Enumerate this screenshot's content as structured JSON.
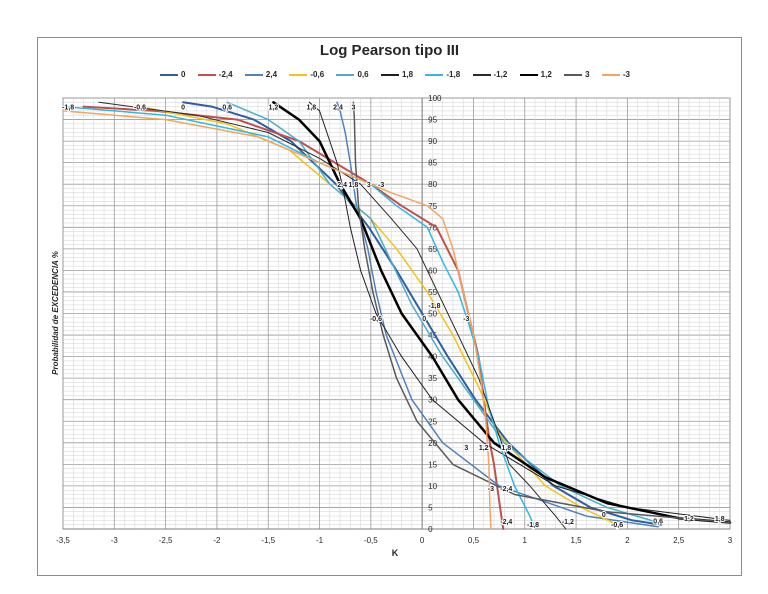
{
  "chart_data": {
    "type": "line",
    "title": "Log Pearson tipo III",
    "xlabel": "K",
    "ylabel": "Probabilidad de  EXCEDENCIA %",
    "xlim": [
      -3.5,
      3
    ],
    "ylim": [
      0,
      100
    ],
    "x_ticks": [
      "-3,5",
      "-3",
      "-2,5",
      "-2",
      "-1,5",
      "-1",
      "-0,5",
      "0",
      "0,5",
      "1",
      "1,5",
      "2",
      "2,5",
      "3"
    ],
    "y_ticks": [
      "0",
      "5",
      "10",
      "15",
      "20",
      "25",
      "30",
      "35",
      "40",
      "45",
      "50",
      "55",
      "60",
      "65",
      "70",
      "75",
      "80",
      "85",
      "90",
      "95",
      "100"
    ],
    "grid": "on",
    "legend_position": "top",
    "series": [
      {
        "name": "0",
        "color": "#2e5fa4",
        "width": 2,
        "points": [
          [
            -2.33,
            99
          ],
          [
            -2.05,
            98
          ],
          [
            -1.64,
            95
          ],
          [
            -1.28,
            90
          ],
          [
            -0.84,
            80
          ],
          [
            -0.52,
            70
          ],
          [
            -0.25,
            60
          ],
          [
            0,
            50
          ],
          [
            0.25,
            40
          ],
          [
            0.52,
            30
          ],
          [
            0.84,
            20
          ],
          [
            1.28,
            10
          ],
          [
            1.64,
            5
          ],
          [
            2.05,
            2
          ],
          [
            2.33,
            1
          ]
        ]
      },
      {
        "name": "-2,4",
        "color": "#c0504d",
        "width": 2,
        "points": [
          [
            -3.3,
            98
          ],
          [
            -2.6,
            97
          ],
          [
            -1.8,
            95
          ],
          [
            -1.2,
            90
          ],
          [
            -0.5,
            80
          ],
          [
            -0.2,
            75
          ],
          [
            0.14,
            70
          ],
          [
            0.35,
            60
          ],
          [
            0.45,
            50
          ],
          [
            0.55,
            40
          ],
          [
            0.6,
            30
          ],
          [
            0.66,
            20
          ],
          [
            0.7,
            15
          ],
          [
            0.76,
            5
          ],
          [
            0.79,
            0
          ]
        ]
      },
      {
        "name": "2,4",
        "color": "#4f81bd",
        "width": 1.5,
        "points": [
          [
            -0.83,
            99
          ],
          [
            -0.8,
            97
          ],
          [
            -0.75,
            92
          ],
          [
            -0.7,
            85
          ],
          [
            -0.64,
            75
          ],
          [
            -0.53,
            65
          ],
          [
            -0.45,
            55
          ],
          [
            -0.35,
            45
          ],
          [
            -0.1,
            30
          ],
          [
            0.2,
            20
          ],
          [
            0.75,
            10
          ],
          [
            1.6,
            3
          ],
          [
            2.3,
            0.5
          ]
        ]
      },
      {
        "name": "-0,6",
        "color": "#f2c314",
        "width": 1.5,
        "points": [
          [
            -2.75,
            98
          ],
          [
            -1.9,
            94
          ],
          [
            -1.3,
            88
          ],
          [
            -0.9,
            80
          ],
          [
            -0.5,
            72
          ],
          [
            -0.25,
            65
          ],
          [
            0.05,
            55
          ],
          [
            0.3,
            45
          ],
          [
            0.55,
            33
          ],
          [
            0.75,
            22
          ],
          [
            1.2,
            10
          ],
          [
            1.55,
            5
          ],
          [
            1.9,
            1
          ]
        ]
      },
      {
        "name": "0,6",
        "color": "#4bacc6",
        "width": 1.5,
        "points": [
          [
            -1.9,
            99
          ],
          [
            -1.5,
            95
          ],
          [
            -1.2,
            90
          ],
          [
            -0.9,
            80
          ],
          [
            -0.5,
            72
          ],
          [
            -0.3,
            62
          ],
          [
            -0.1,
            52
          ],
          [
            0.2,
            40
          ],
          [
            0.5,
            30
          ],
          [
            0.8,
            20
          ],
          [
            1.35,
            10
          ],
          [
            1.8,
            5
          ],
          [
            2.3,
            1.5
          ]
        ]
      },
      {
        "name": "1,8",
        "color": "#1f1f1f",
        "width": 1,
        "points": [
          [
            -1.1,
            99
          ],
          [
            -1.0,
            97
          ],
          [
            -0.9,
            90
          ],
          [
            -0.83,
            85
          ],
          [
            -0.78,
            80
          ],
          [
            -0.7,
            70
          ],
          [
            -0.6,
            60
          ],
          [
            -0.45,
            50
          ],
          [
            -0.2,
            40
          ],
          [
            0.1,
            30
          ],
          [
            0.6,
            20
          ],
          [
            1.3,
            10
          ],
          [
            2.0,
            5
          ],
          [
            3.0,
            2
          ]
        ]
      },
      {
        "name": "-1,8",
        "color": "#31b7e5",
        "width": 1.5,
        "points": [
          [
            -3.5,
            98
          ],
          [
            -2.5,
            96
          ],
          [
            -1.5,
            91
          ],
          [
            -1.0,
            85
          ],
          [
            -0.5,
            80
          ],
          [
            -0.25,
            75
          ],
          [
            0.05,
            70
          ],
          [
            0.2,
            62
          ],
          [
            0.35,
            55
          ],
          [
            0.45,
            48
          ],
          [
            0.55,
            40
          ],
          [
            0.65,
            28
          ],
          [
            0.75,
            20
          ],
          [
            0.9,
            10
          ],
          [
            1.05,
            3
          ],
          [
            1.1,
            0
          ]
        ]
      },
      {
        "name": "-1,2",
        "color": "#2b2b2b",
        "width": 1,
        "points": [
          [
            -3.15,
            99
          ],
          [
            -2.2,
            96
          ],
          [
            -1.5,
            92
          ],
          [
            -1.0,
            86
          ],
          [
            -0.6,
            80
          ],
          [
            -0.3,
            72
          ],
          [
            -0.05,
            65
          ],
          [
            0.15,
            55
          ],
          [
            0.35,
            45
          ],
          [
            0.55,
            35
          ],
          [
            0.7,
            25
          ],
          [
            0.85,
            15
          ],
          [
            1.05,
            10
          ],
          [
            1.3,
            3
          ],
          [
            1.4,
            0
          ]
        ]
      },
      {
        "name": "1,2",
        "color": "#000000",
        "width": 2.5,
        "points": [
          [
            -1.45,
            99
          ],
          [
            -1.2,
            95
          ],
          [
            -1.0,
            90
          ],
          [
            -0.8,
            80
          ],
          [
            -0.6,
            72
          ],
          [
            -0.4,
            60
          ],
          [
            -0.2,
            50
          ],
          [
            0.1,
            40
          ],
          [
            0.35,
            30
          ],
          [
            0.7,
            20
          ],
          [
            1.2,
            12
          ],
          [
            1.8,
            6
          ],
          [
            2.5,
            2.5
          ],
          [
            3.0,
            1.5
          ]
        ]
      },
      {
        "name": "3",
        "color": "#595959",
        "width": 1.5,
        "points": [
          [
            -0.67,
            99
          ],
          [
            -0.66,
            95
          ],
          [
            -0.65,
            85
          ],
          [
            -0.62,
            75
          ],
          [
            -0.56,
            65
          ],
          [
            -0.48,
            55
          ],
          [
            -0.38,
            45
          ],
          [
            -0.25,
            35
          ],
          [
            -0.05,
            25
          ],
          [
            0.3,
            15
          ],
          [
            0.9,
            8
          ],
          [
            1.8,
            4
          ],
          [
            3.0,
            1.5
          ]
        ]
      },
      {
        "name": "-3",
        "color": "#f4a460",
        "width": 1.5,
        "points": [
          [
            -3.5,
            97
          ],
          [
            -2.5,
            95
          ],
          [
            -1.6,
            91
          ],
          [
            -1.0,
            85
          ],
          [
            -0.3,
            78
          ],
          [
            0.05,
            75
          ],
          [
            0.2,
            72
          ],
          [
            0.3,
            65
          ],
          [
            0.4,
            55
          ],
          [
            0.5,
            45
          ],
          [
            0.57,
            35
          ],
          [
            0.62,
            25
          ],
          [
            0.65,
            15
          ],
          [
            0.66,
            5
          ],
          [
            0.67,
            0
          ]
        ]
      }
    ],
    "annotations": [
      {
        "text": "-1,8",
        "x": -3.45,
        "y": 98
      },
      {
        "text": "-0,6",
        "x": -2.75,
        "y": 98
      },
      {
        "text": "0",
        "x": -2.33,
        "y": 98
      },
      {
        "text": "0,6",
        "x": -1.9,
        "y": 98
      },
      {
        "text": "1,2",
        "x": -1.45,
        "y": 98
      },
      {
        "text": "1,8",
        "x": -1.08,
        "y": 98
      },
      {
        "text": "2,4",
        "x": -0.82,
        "y": 98
      },
      {
        "text": "3",
        "x": -0.67,
        "y": 98
      },
      {
        "text": "2,4",
        "x": -0.78,
        "y": 80
      },
      {
        "text": "1,8",
        "x": -0.67,
        "y": 80
      },
      {
        "text": "3",
        "x": -0.52,
        "y": 80
      },
      {
        "text": "-3",
        "x": -0.4,
        "y": 80
      },
      {
        "text": "-1,8",
        "x": 0.12,
        "y": 52
      },
      {
        "text": "0",
        "x": 0.02,
        "y": 49
      },
      {
        "text": "-3",
        "x": 0.43,
        "y": 49
      },
      {
        "text": "-0,6",
        "x": -0.45,
        "y": 49
      },
      {
        "text": "3",
        "x": 0.43,
        "y": 19
      },
      {
        "text": "1,2",
        "x": 0.6,
        "y": 19
      },
      {
        "text": "1,8",
        "x": 0.82,
        "y": 19
      },
      {
        "text": "-3",
        "x": 0.67,
        "y": 9.5
      },
      {
        "text": "-2,4",
        "x": 0.82,
        "y": 9.5
      },
      {
        "text": "-2,4",
        "x": 0.82,
        "y": 1.8
      },
      {
        "text": "-1,8",
        "x": 1.08,
        "y": 1.2
      },
      {
        "text": "-1,2",
        "x": 1.42,
        "y": 1.8
      },
      {
        "text": "0",
        "x": 1.77,
        "y": 3.5
      },
      {
        "text": "-0,6",
        "x": 1.9,
        "y": 1.2
      },
      {
        "text": "0,6",
        "x": 2.3,
        "y": 2
      },
      {
        "text": "1,2",
        "x": 2.6,
        "y": 2.5
      },
      {
        "text": "1,8",
        "x": 2.9,
        "y": 2.5
      }
    ]
  }
}
